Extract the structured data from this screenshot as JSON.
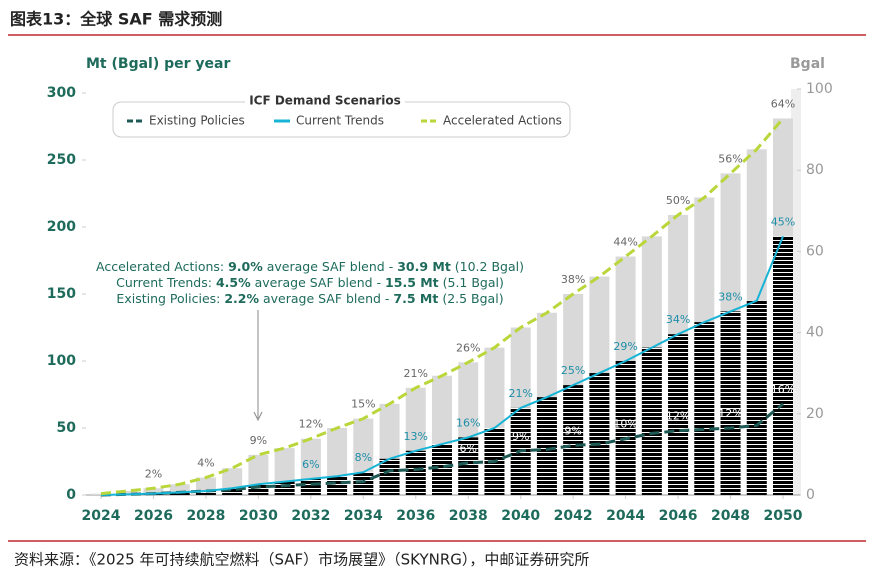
{
  "header": {
    "title": "图表13：全球 SAF 需求预测"
  },
  "footer": {
    "source": "资料来源：《2025 年可持续航空燃料（SAF）市场展望》（SKYNRG），中邮证券研究所"
  },
  "chart_data": {
    "type": "bar-line",
    "ylabel": "Mt (Bgal) per year",
    "y2label": "Bgal",
    "legend_title": "ICF Demand Scenarios",
    "legend": "top",
    "x": [
      2024,
      2025,
      2026,
      2027,
      2028,
      2029,
      2030,
      2031,
      2032,
      2033,
      2034,
      2035,
      2036,
      2037,
      2038,
      2039,
      2040,
      2041,
      2042,
      2043,
      2044,
      2045,
      2046,
      2047,
      2048,
      2049,
      2050
    ],
    "xlim": [
      2024,
      2050
    ],
    "xticks": [
      2024,
      2026,
      2028,
      2030,
      2032,
      2034,
      2036,
      2038,
      2040,
      2042,
      2044,
      2046,
      2048,
      2050
    ],
    "ylim": [
      0,
      300
    ],
    "yticks": [
      0,
      50,
      100,
      150,
      200,
      250,
      300
    ],
    "y2lim": [
      0,
      100
    ],
    "y2ticks": [
      0,
      20,
      40,
      60,
      80,
      100
    ],
    "series": [
      {
        "name": "Existing Policies",
        "color": "#1e5a55",
        "dash": true,
        "label_color": "#ffffff",
        "values": [
          0,
          0.5,
          1,
          2,
          3,
          4,
          6,
          7,
          8,
          9,
          10,
          18,
          19,
          21,
          24,
          25,
          33,
          34,
          37,
          38,
          42,
          46,
          48,
          49,
          50,
          52,
          68
        ],
        "blend": [
          {
            "x": 2038,
            "value": 6,
            "label": "6%"
          },
          {
            "x": 2040,
            "value": 9,
            "label": "9%"
          },
          {
            "x": 2042,
            "value": 9,
            "label": "9%"
          },
          {
            "x": 2044,
            "value": 10,
            "label": "10%"
          },
          {
            "x": 2046,
            "value": 12,
            "label": "12%"
          },
          {
            "x": 2048,
            "value": 12,
            "label": "12%"
          },
          {
            "x": 2050,
            "value": 16,
            "label": "16%"
          }
        ]
      },
      {
        "name": "Current Trends",
        "color": "#16b4d6",
        "dash": false,
        "bar": true,
        "bar_color": "#00bff0",
        "label_color": "#1e8fa8",
        "values": [
          0,
          0.5,
          1,
          2,
          3,
          5,
          8,
          10,
          12,
          14,
          17,
          27,
          33,
          38,
          43,
          50,
          65,
          73,
          82,
          91,
          100,
          110,
          120,
          129,
          137,
          145,
          193
        ],
        "blend": [
          {
            "x": 2032,
            "value": 6,
            "label": "6%"
          },
          {
            "x": 2034,
            "value": 8,
            "label": "8%"
          },
          {
            "x": 2036,
            "value": 13,
            "label": "13%"
          },
          {
            "x": 2038,
            "value": 16,
            "label": "16%"
          },
          {
            "x": 2040,
            "value": 21,
            "label": "21%"
          },
          {
            "x": 2042,
            "value": 25,
            "label": "25%"
          },
          {
            "x": 2044,
            "value": 29,
            "label": "29%"
          },
          {
            "x": 2046,
            "value": 34,
            "label": "34%"
          },
          {
            "x": 2048,
            "value": 38,
            "label": "38%"
          },
          {
            "x": 2050,
            "value": 45,
            "label": "45%"
          }
        ]
      },
      {
        "name": "Accelerated Actions",
        "color": "#b9d63a",
        "dash": true,
        "bar": true,
        "bar_color": "#d9d9d9",
        "label_color": "#666666",
        "values": [
          1,
          3,
          5,
          8,
          13,
          20,
          30,
          35,
          42,
          50,
          57,
          68,
          80,
          89,
          99,
          110,
          125,
          136,
          150,
          163,
          178,
          193,
          209,
          222,
          240,
          258,
          281
        ],
        "blend": [
          {
            "x": 2026,
            "value": 2,
            "label": "2%"
          },
          {
            "x": 2028,
            "value": 4,
            "label": "4%"
          },
          {
            "x": 2030,
            "value": 9,
            "label": "9%"
          },
          {
            "x": 2032,
            "value": 12,
            "label": "12%"
          },
          {
            "x": 2034,
            "value": 15,
            "label": "15%"
          },
          {
            "x": 2036,
            "value": 21,
            "label": "21%"
          },
          {
            "x": 2038,
            "value": 26,
            "label": "26%"
          },
          {
            "x": 2042,
            "value": 38,
            "label": "38%"
          },
          {
            "x": 2044,
            "value": 44,
            "label": "44%"
          },
          {
            "x": 2046,
            "value": 50,
            "label": "50%"
          },
          {
            "x": 2048,
            "value": 56,
            "label": "56%"
          },
          {
            "x": 2050,
            "value": 64,
            "label": "64%"
          }
        ]
      }
    ],
    "annotation": [
      [
        {
          "text": "Accelerated Actions: ",
          "bold": false
        },
        {
          "text": "9.0%",
          "bold": true
        },
        {
          "text": " average SAF blend - ",
          "bold": false
        },
        {
          "text": "30.9 Mt",
          "bold": true
        },
        {
          "text": " (10.2 Bgal)",
          "bold": false
        }
      ],
      [
        {
          "text": "Current Trends: ",
          "bold": false
        },
        {
          "text": "4.5%",
          "bold": true
        },
        {
          "text": " average SAF blend - ",
          "bold": false
        },
        {
          "text": "15.5 Mt",
          "bold": true
        },
        {
          "text": " (5.1 Bgal)",
          "bold": false
        }
      ],
      [
        {
          "text": "Existing Policies: ",
          "bold": false
        },
        {
          "text": "2.2%",
          "bold": true
        },
        {
          "text": " average SAF blend - ",
          "bold": false
        },
        {
          "text": "7.5 Mt",
          "bold": true
        },
        {
          "text": " (2.5 Bgal)",
          "bold": false
        }
      ]
    ]
  }
}
